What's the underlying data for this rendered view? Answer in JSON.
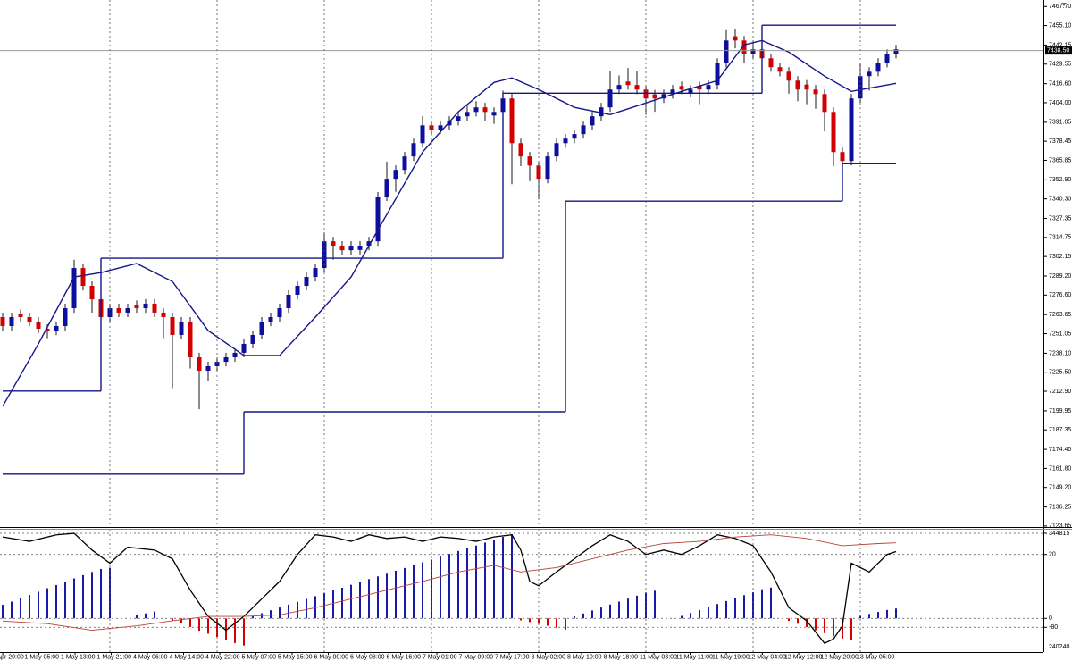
{
  "chart_data": [
    {
      "type": "candlestick",
      "categories": [
        "30 Apr 20:00",
        null,
        null,
        null,
        "1 May 05:00",
        null,
        null,
        null,
        "1 May 13:00",
        null,
        null,
        null,
        "1 May 21:00",
        null,
        null,
        null,
        "4 May 06:00",
        null,
        null,
        null,
        "4 May 14:00",
        null,
        null,
        null,
        "4 May 22:00",
        null,
        null,
        null,
        "5 May 07:00",
        null,
        null,
        null,
        "5 May 15:00",
        null,
        null,
        null,
        "6 May 00:00",
        null,
        null,
        null,
        "6 May 08:00",
        null,
        null,
        null,
        "6 May 16:00",
        null,
        null,
        null,
        "7 May 01:00",
        null,
        null,
        null,
        "7 May 09:00",
        null,
        null,
        null,
        "7 May 17:00",
        null,
        null,
        null,
        "8 May 02:00",
        null,
        null,
        null,
        "8 May 10:00",
        null,
        null,
        null,
        "8 May 18:00",
        null,
        null,
        null,
        "11 May 03:00",
        null,
        null,
        null,
        "11 May 11:00",
        null,
        null,
        null,
        "11 May 19:00",
        null,
        null,
        null,
        "12 May 04:00",
        null,
        null,
        null,
        "12 May 12:00",
        null,
        null,
        null,
        "12 May 20:00",
        null,
        null,
        null,
        "13 May 05:00",
        null,
        null,
        null,
        null
      ],
      "open": [
        7262.0,
        7256.1,
        7264.0,
        7262.0,
        7259.0,
        7254.3,
        7253.1,
        7256.1,
        7267.9,
        7294.5,
        7282.7,
        7273.8,
        7262.0,
        7267.9,
        7265.0,
        7270.0,
        7267.9,
        7270.9,
        7265.0,
        7262.0,
        7250.2,
        7259.0,
        7235.4,
        7226.5,
        7229.5,
        7232.4,
        7235.4,
        7238.4,
        7244.3,
        7250.2,
        7259.0,
        7262.0,
        7267.9,
        7276.8,
        7282.7,
        7288.6,
        7294.5,
        7312.2,
        7309.3,
        7306.3,
        7306.5,
        7309.3,
        7312.2,
        7341.8,
        7353.6,
        7359.5,
        7368.4,
        7377.2,
        7389.0,
        7386.1,
        7389.0,
        7392.0,
        7395.0,
        7397.9,
        7400.9,
        7395.5,
        7397.9,
        7406.8,
        7377.2,
        7368.4,
        7362.4,
        7353.6,
        7368.4,
        7377.2,
        7380.2,
        7383.2,
        7389.0,
        7395.0,
        7400.9,
        7412.7,
        7418.0,
        7415.7,
        7412.7,
        7409.5,
        7406.8,
        7409.7,
        7415.0,
        7410.5,
        7415.0,
        7412.7,
        7415.7,
        7430.4,
        7448.0,
        7445.2,
        7436.3,
        7439.3,
        7433.4,
        7427.5,
        7424.5,
        7418.6,
        7416.0,
        7412.7,
        7409.7,
        7397.9,
        7371.3,
        7365.4,
        7406.8,
        7421.6,
        7424.5,
        7430.4,
        7436.3
      ],
      "high": [
        7265.0,
        7265.0,
        7267.0,
        7265.0,
        7262.0,
        7257.3,
        7259.1,
        7270.9,
        7300.0,
        7297.5,
        7285.7,
        7276.8,
        7270.9,
        7270.9,
        7270.9,
        7273.0,
        7273.9,
        7273.9,
        7268.0,
        7265.0,
        7262.0,
        7262.0,
        7238.4,
        7232.5,
        7235.4,
        7238.4,
        7241.4,
        7247.3,
        7253.2,
        7262.0,
        7265.0,
        7270.9,
        7279.8,
        7285.7,
        7291.6,
        7297.5,
        7318.0,
        7315.2,
        7312.3,
        7312.3,
        7312.3,
        7315.2,
        7344.8,
        7365.0,
        7362.5,
        7371.4,
        7380.2,
        7395.0,
        7392.0,
        7392.0,
        7395.0,
        7398.0,
        7403.0,
        7405.0,
        7403.9,
        7400.9,
        7412.0,
        7409.8,
        7380.2,
        7371.4,
        7365.4,
        7371.4,
        7380.2,
        7383.2,
        7386.2,
        7392.0,
        7398.0,
        7403.9,
        7425.0,
        7422.0,
        7427.0,
        7425.0,
        7415.7,
        7412.5,
        7412.7,
        7415.7,
        7418.0,
        7415.7,
        7418.0,
        7418.7,
        7433.4,
        7452.0,
        7453.0,
        7448.2,
        7445.0,
        7442.3,
        7436.4,
        7430.5,
        7427.5,
        7421.6,
        7419.0,
        7415.7,
        7412.7,
        7400.9,
        7374.3,
        7409.8,
        7430.0,
        7427.5,
        7433.4,
        7439.3,
        7442.3
      ],
      "low": [
        7253.1,
        7253.1,
        7259.0,
        7256.0,
        7251.3,
        7248.0,
        7250.1,
        7253.1,
        7264.9,
        7279.7,
        7265.0,
        7246.0,
        7259.0,
        7262.0,
        7262.0,
        7264.9,
        7264.9,
        7262.0,
        7248.0,
        7215.0,
        7247.2,
        7228.0,
        7201.0,
        7220.0,
        7226.5,
        7229.4,
        7232.4,
        7235.4,
        7241.3,
        7247.2,
        7256.0,
        7259.0,
        7264.9,
        7273.8,
        7279.7,
        7285.6,
        7291.5,
        7300.0,
        7303.3,
        7303.3,
        7303.5,
        7306.3,
        7309.2,
        7338.8,
        7345.0,
        7356.5,
        7365.4,
        7374.2,
        7383.1,
        7383.1,
        7386.0,
        7389.0,
        7392.0,
        7394.9,
        7392.0,
        7390.0,
        7394.9,
        7350.0,
        7362.0,
        7352.0,
        7340.0,
        7350.6,
        7365.4,
        7374.2,
        7377.2,
        7380.2,
        7386.0,
        7392.0,
        7397.9,
        7409.7,
        7412.7,
        7409.7,
        7396.0,
        7398.0,
        7403.8,
        7406.7,
        7409.7,
        7407.5,
        7403.0,
        7409.7,
        7412.7,
        7427.4,
        7440.0,
        7430.0,
        7433.3,
        7428.0,
        7424.5,
        7421.5,
        7410.0,
        7405.0,
        7403.0,
        7400.0,
        7385.0,
        7362.0,
        7360.0,
        7362.4,
        7403.8,
        7412.0,
        7421.5,
        7427.4,
        7433.3
      ],
      "close": [
        7256.1,
        7262.0,
        7262.0,
        7259.0,
        7254.3,
        7253.1,
        7256.1,
        7267.9,
        7294.5,
        7282.7,
        7273.8,
        7262.0,
        7267.9,
        7265.0,
        7267.9,
        7267.9,
        7270.9,
        7265.0,
        7262.0,
        7250.2,
        7259.0,
        7235.4,
        7226.5,
        7229.5,
        7232.4,
        7235.4,
        7238.4,
        7244.3,
        7250.2,
        7259.0,
        7262.0,
        7267.9,
        7276.8,
        7282.7,
        7288.6,
        7294.5,
        7312.2,
        7309.3,
        7306.3,
        7309.3,
        7309.3,
        7312.2,
        7341.8,
        7353.6,
        7359.5,
        7368.4,
        7377.2,
        7389.0,
        7386.1,
        7389.0,
        7392.0,
        7395.0,
        7397.9,
        7400.9,
        7397.9,
        7397.9,
        7406.8,
        7377.2,
        7368.4,
        7362.4,
        7353.6,
        7368.4,
        7377.2,
        7380.2,
        7383.2,
        7389.0,
        7395.0,
        7400.9,
        7412.7,
        7415.7,
        7415.7,
        7412.7,
        7406.8,
        7406.8,
        7409.7,
        7412.7,
        7412.7,
        7412.7,
        7412.7,
        7415.7,
        7430.4,
        7445.2,
        7445.2,
        7436.3,
        7439.3,
        7433.4,
        7427.5,
        7424.5,
        7418.6,
        7412.7,
        7412.7,
        7409.7,
        7397.9,
        7371.3,
        7365.4,
        7406.8,
        7421.6,
        7424.5,
        7430.4,
        7436.3,
        7439.3
      ],
      "up_color": "#0d0d9e",
      "down_color": "#d20000",
      "wick_color": "#1a1a1a",
      "lines": [
        {
          "color": "#16168a",
          "x": [
            0,
            4,
            8,
            11,
            15,
            19,
            23,
            27,
            31,
            35,
            39,
            43,
            47,
            51,
            55,
            57,
            60,
            64,
            68,
            72,
            76,
            80,
            83,
            85,
            88,
            92,
            95,
            100
          ],
          "values": [
            7202.9,
            7244.3,
            7288.6,
            7291.5,
            7297.5,
            7285.6,
            7253.1,
            7236.6,
            7236.6,
            7262.0,
            7288.6,
            7330.0,
            7371.3,
            7397.9,
            7417.4,
            7420.4,
            7412.7,
            7400.9,
            7396.1,
            7403.8,
            7411.5,
            7418.6,
            7442.3,
            7445.2,
            7437.5,
            7421.6,
            7411.5,
            7416.8
          ]
        }
      ],
      "steps": [
        {
          "color": "#16168a",
          "x": [
            0,
            11,
            56,
            85
          ],
          "values": [
            7213,
            7301,
            7410.3,
            7455.3
          ]
        },
        {
          "color": "#16168a",
          "x": [
            0,
            27,
            63,
            94
          ],
          "values": [
            7158,
            7199.3,
            7338.8,
            7363.6
          ]
        }
      ],
      "current_price": {
        "value": 7438.5,
        "label": "7438.50"
      },
      "ylim": [
        7123,
        7472
      ],
      "yticks": [
        {
          "value": 7467.7,
          "label": "7467.70"
        },
        {
          "value": 7455.1,
          "label": "7455.10"
        },
        7442.15,
        7429.55,
        {
          "value": 7416.6,
          "label": "7416.60"
        },
        {
          "value": 7404,
          "label": "7404.00"
        },
        7391.05,
        7378.45,
        7365.85,
        {
          "value": 7352.9,
          "label": "7352.90"
        },
        {
          "value": 7340.3,
          "label": "7340.30"
        },
        7327.35,
        7314.75,
        7302.15,
        {
          "value": 7289.2,
          "label": "7289.20"
        },
        {
          "value": 7276.6,
          "label": "7276.60"
        },
        7263.65,
        7251.05,
        {
          "value": 7238.1,
          "label": "7238.10"
        },
        {
          "value": 7225.5,
          "label": "7225.50"
        },
        {
          "value": 7212.9,
          "label": "7212.90"
        },
        7199.95,
        7187.35,
        {
          "value": 7174.4,
          "label": "7174.40"
        },
        {
          "value": 7161.8,
          "label": "7161.80"
        },
        {
          "value": 7149.2,
          "label": "7149.20"
        },
        7136.25,
        7123.65
      ],
      "grid": true
    },
    {
      "type": "indicator",
      "histogram": {
        "up_color": "#1a1aa8",
        "down_color": "#d40000",
        "axis": "y2",
        "values": [
          55000,
          68000,
          82000,
          95000,
          108000,
          122000,
          135000,
          148000,
          162000,
          175000,
          188000,
          200000,
          205000,
          0,
          0,
          15000,
          20000,
          28000,
          0,
          -10000,
          -20000,
          -35000,
          -50000,
          -62000,
          -75000,
          -88000,
          -100000,
          -110000,
          10000,
          21000,
          33000,
          44000,
          56000,
          67000,
          79000,
          90000,
          102000,
          113000,
          124000,
          136000,
          147000,
          159000,
          170000,
          181000,
          193000,
          204000,
          216000,
          227000,
          238000,
          250000,
          261000,
          273000,
          284000,
          295000,
          307000,
          318000,
          330000,
          341000,
          -8000,
          -15000,
          -22000,
          -30000,
          -38000,
          -46000,
          8000,
          20000,
          32000,
          44000,
          56000,
          68000,
          80000,
          92000,
          104000,
          112000,
          0,
          0,
          10000,
          22000,
          34000,
          46000,
          58000,
          70000,
          82000,
          94000,
          106000,
          118000,
          125000,
          0,
          -10000,
          -22000,
          -35000,
          -48000,
          -60000,
          -72000,
          -82000,
          -86000,
          10000,
          18000,
          26000,
          34000,
          40000
        ]
      },
      "lines": [
        {
          "color": "#000000",
          "x": [
            0,
            3,
            6,
            8,
            10,
            12,
            14,
            17,
            19,
            21,
            23,
            25,
            27,
            29,
            31,
            33,
            35,
            37,
            39,
            41,
            43,
            45,
            47,
            49,
            51,
            53,
            55,
            57,
            58,
            59,
            60,
            62,
            64,
            66,
            68,
            70,
            72,
            74,
            76,
            78,
            80,
            82,
            84,
            86,
            88,
            90,
            92,
            93,
            94,
            95,
            97,
            99,
            100
          ],
          "values": [
            44,
            38,
            47,
            49,
            26,
            8,
            30,
            26,
            14,
            -29,
            -65,
            -84,
            -65,
            -41,
            -17,
            20,
            47,
            44,
            38,
            47,
            42,
            44,
            38,
            44,
            42,
            38,
            44,
            47,
            26,
            -17,
            -23,
            -4,
            14,
            32,
            47,
            38,
            20,
            26,
            20,
            32,
            47,
            42,
            32,
            -4,
            -53,
            -71,
            -102,
            -96,
            -78,
            8,
            -4,
            20,
            24
          ]
        },
        {
          "color": "#b8423a",
          "x": [
            0,
            5,
            10,
            15,
            19,
            23,
            27,
            31,
            35,
            39,
            43,
            47,
            51,
            55,
            58,
            62,
            66,
            70,
            74,
            78,
            82,
            86,
            90,
            94,
            98,
            100
          ],
          "values": [
            -71.5,
            -75,
            -84,
            -78,
            -71,
            -65,
            -65,
            -63,
            -53,
            -41,
            -29,
            -17,
            -4,
            5,
            -4,
            2,
            14,
            26,
            35,
            38,
            44,
            47,
            42,
            32,
            35,
            36
          ]
        }
      ],
      "ylim": [
        -114,
        54
      ],
      "yticks": [
        20,
        -80
      ],
      "y2lim": [
        -136500,
        359200
      ],
      "y2ticks": [
        344815,
        0
      ],
      "bottom_label": "240240"
    }
  ]
}
